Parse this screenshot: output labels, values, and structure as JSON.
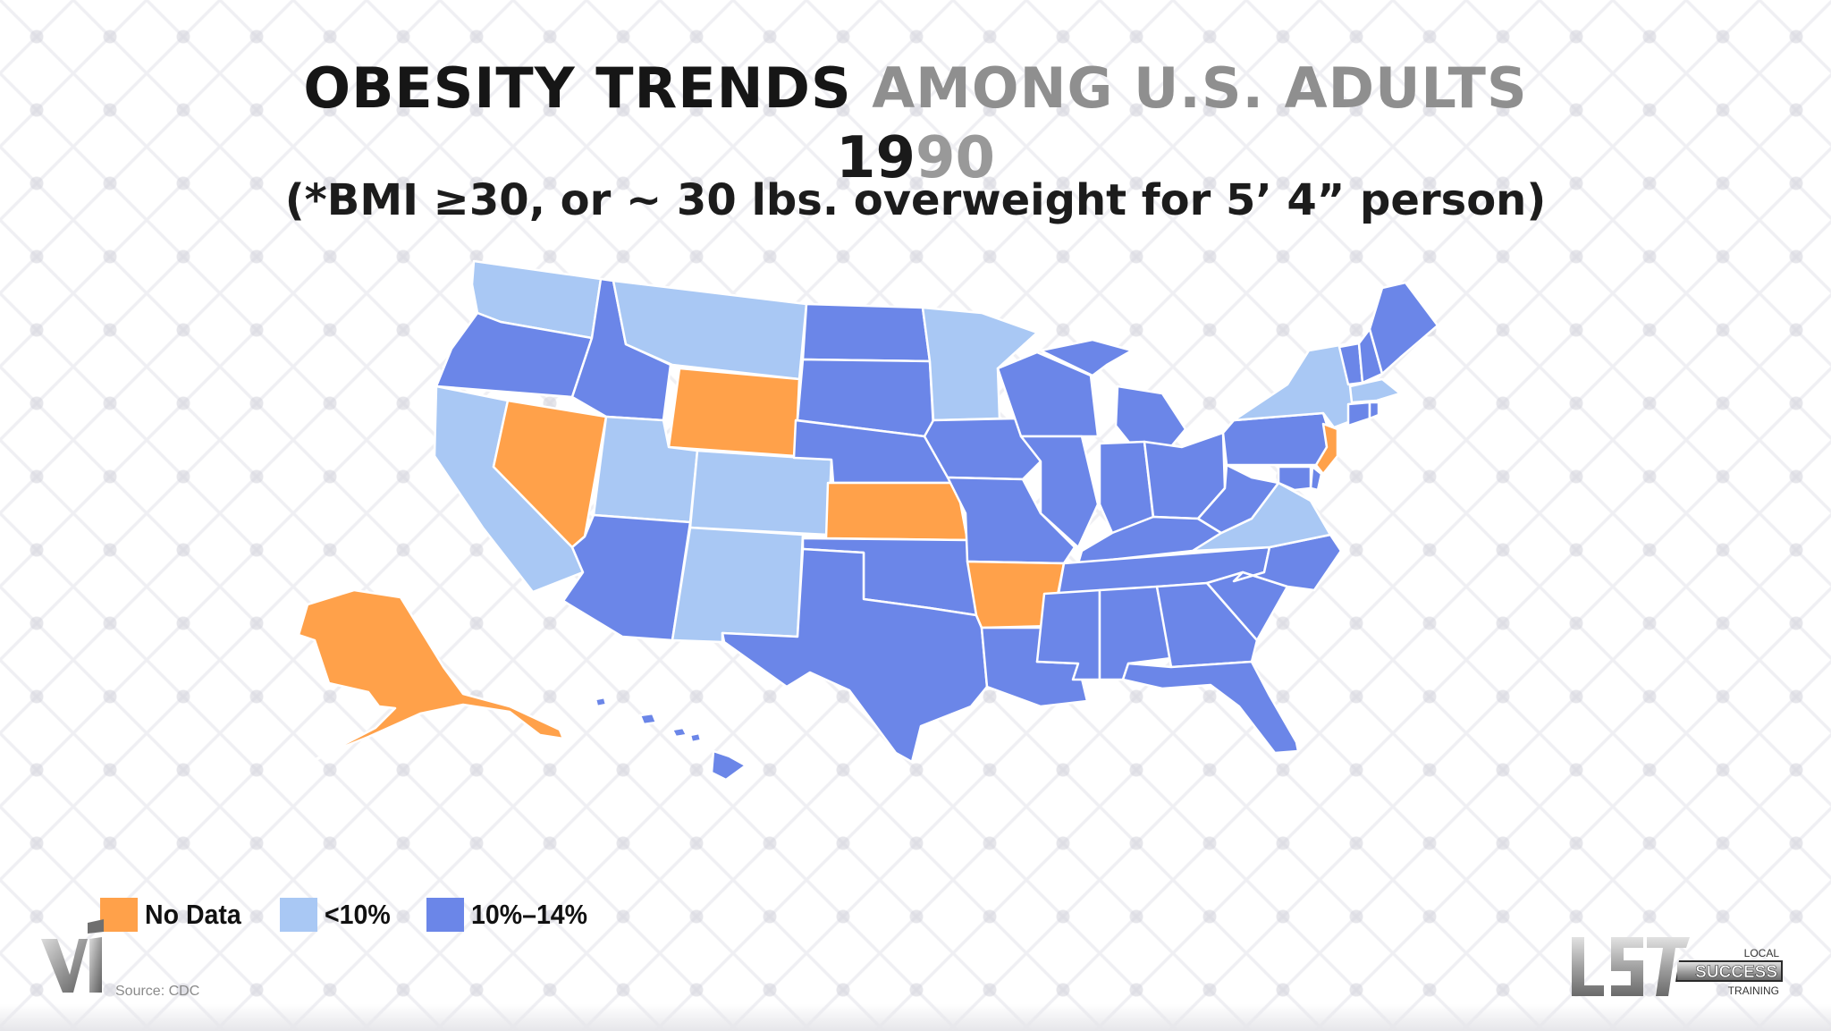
{
  "title": {
    "part1": "OBESITY TRENDS",
    "part2": "AMONG U.S. ADULTS"
  },
  "year": {
    "part1": "19",
    "part2": "90"
  },
  "subtitle": "(*BMI ≥30, or ~ 30 lbs. overweight for 5’ 4” person)",
  "colors": {
    "no_data": "#ffa14a",
    "under_10": "#a9c8f4",
    "10_14": "#6b86e8"
  },
  "legend": [
    {
      "label": "No Data",
      "category": "no_data"
    },
    {
      "label": "<10%",
      "category": "under_10"
    },
    {
      "label": "10%–14%",
      "category": "10_14"
    }
  ],
  "states": {
    "WA": "under_10",
    "OR": "10_14",
    "CA": "under_10",
    "NV": "no_data",
    "ID": "10_14",
    "MT": "under_10",
    "WY": "no_data",
    "UT": "under_10",
    "AZ": "10_14",
    "CO": "under_10",
    "NM": "under_10",
    "ND": "10_14",
    "SD": "10_14",
    "NE": "10_14",
    "KS": "no_data",
    "OK": "10_14",
    "TX": "10_14",
    "MN": "under_10",
    "IA": "10_14",
    "MO": "10_14",
    "AR": "no_data",
    "LA": "10_14",
    "WI": "10_14",
    "IL": "10_14",
    "MI": "10_14",
    "IN": "10_14",
    "OH": "10_14",
    "KY": "10_14",
    "TN": "10_14",
    "MS": "10_14",
    "AL": "10_14",
    "GA": "10_14",
    "FL": "10_14",
    "SC": "10_14",
    "NC": "10_14",
    "VA": "under_10",
    "WV": "10_14",
    "PA": "10_14",
    "NY": "under_10",
    "VT": "10_14",
    "NH": "10_14",
    "ME": "10_14",
    "MA": "under_10",
    "RI": "10_14",
    "CT": "10_14",
    "NJ": "no_data",
    "DE": "10_14",
    "MD": "10_14",
    "AK": "no_data",
    "HI": "10_14"
  },
  "source": "Source: CDC",
  "logos": {
    "lst_line1": "LOCAL",
    "lst_line2": "SUCCESS",
    "lst_line3": "TRAINING"
  }
}
